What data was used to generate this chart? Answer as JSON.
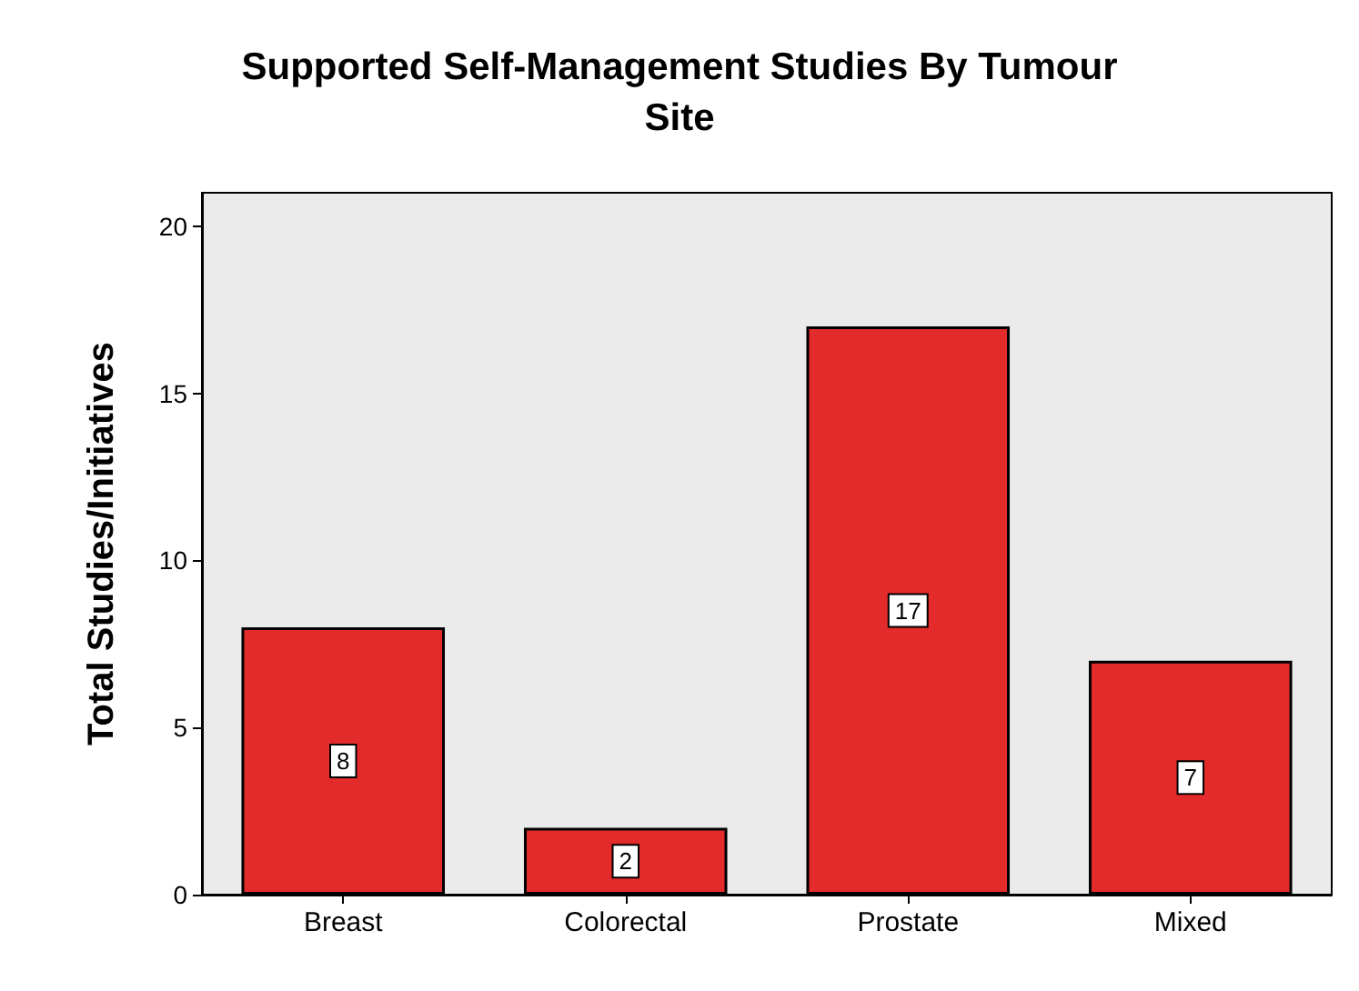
{
  "chart_data": {
    "type": "bar",
    "title": "Supported Self-Management Studies By Tumour\nSite",
    "ylabel": "Total Studies/Initiatives",
    "categories": [
      "Breast",
      "Colorectal",
      "Prostate",
      "Mixed"
    ],
    "values": [
      8,
      2,
      17,
      7
    ],
    "color": "#e32b2b",
    "ylim": [
      0,
      21
    ],
    "yticks": [
      0,
      5,
      10,
      15,
      20
    ],
    "grid": false,
    "data_labels": true
  }
}
